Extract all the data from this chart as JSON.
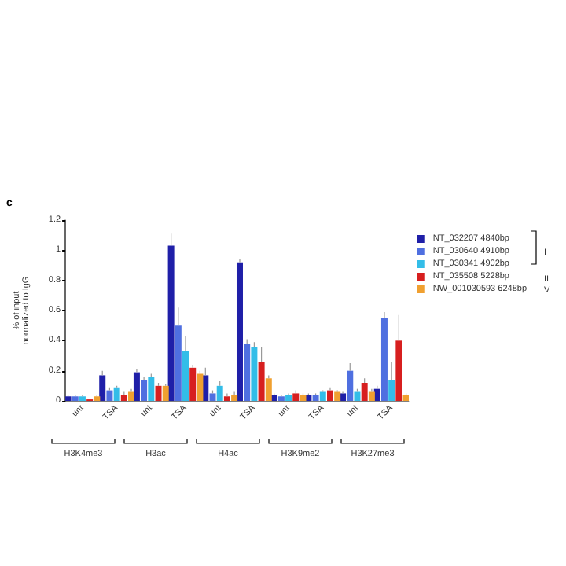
{
  "chart_data": {
    "type": "bar",
    "ylabel": "% of input\nnormalized to IgG",
    "categories": [
      "unt",
      "TSA",
      "unt",
      "TSA",
      "unt",
      "TSA",
      "unt",
      "TSA",
      "unt",
      "TSA"
    ],
    "series": [
      {
        "name": "NT_032207 4840bp",
        "color": "#1f1fa8",
        "values": [
          0.03,
          0.17,
          0.19,
          1.03,
          0.17,
          0.92,
          0.04,
          0.04,
          0.05,
          0.08
        ],
        "errors": [
          0.01,
          0.03,
          0.02,
          0.08,
          0.05,
          0.02,
          0.01,
          0.01,
          0.01,
          0.02
        ]
      },
      {
        "name": "NT_030640 4910bp",
        "color": "#4f6fe0",
        "values": [
          0.03,
          0.07,
          0.14,
          0.5,
          0.05,
          0.38,
          0.03,
          0.04,
          0.2,
          0.55
        ],
        "errors": [
          0.01,
          0.02,
          0.02,
          0.12,
          0.02,
          0.03,
          0.01,
          0.01,
          0.05,
          0.04
        ]
      },
      {
        "name": "NT_030341 4902bp",
        "color": "#33bde8",
        "values": [
          0.03,
          0.09,
          0.16,
          0.33,
          0.1,
          0.36,
          0.04,
          0.06,
          0.06,
          0.14
        ],
        "errors": [
          0.01,
          0.01,
          0.02,
          0.1,
          0.03,
          0.03,
          0.01,
          0.01,
          0.02,
          0.12
        ]
      },
      {
        "name": "NT_035508 5228bp",
        "color": "#d71f1f",
        "values": [
          0.01,
          0.04,
          0.1,
          0.22,
          0.03,
          0.26,
          0.05,
          0.07,
          0.12,
          0.4
        ],
        "errors": [
          null,
          0.02,
          0.02,
          0.02,
          0.02,
          0.1,
          0.02,
          0.02,
          0.03,
          0.17
        ]
      },
      {
        "name": "NW_001030593 6248bp",
        "color": "#f0a030",
        "values": [
          0.03,
          0.06,
          0.1,
          0.18,
          0.04,
          0.15,
          0.04,
          0.06,
          0.06,
          0.04
        ],
        "errors": [
          0.01,
          0.02,
          0.01,
          0.02,
          0.02,
          0.02,
          0.01,
          0.01,
          0.02,
          0.01
        ]
      }
    ],
    "ylim": [
      0,
      1.2
    ],
    "yticks": [
      0,
      0.2,
      0.4,
      0.6,
      0.8,
      1,
      1.2
    ],
    "grid": false,
    "legend": "right",
    "annotations": [
      "c",
      "H3K4me3",
      "H3ac",
      "H4ac",
      "H3K9me2",
      "H3K27me3",
      "I",
      "II",
      "V"
    ]
  }
}
